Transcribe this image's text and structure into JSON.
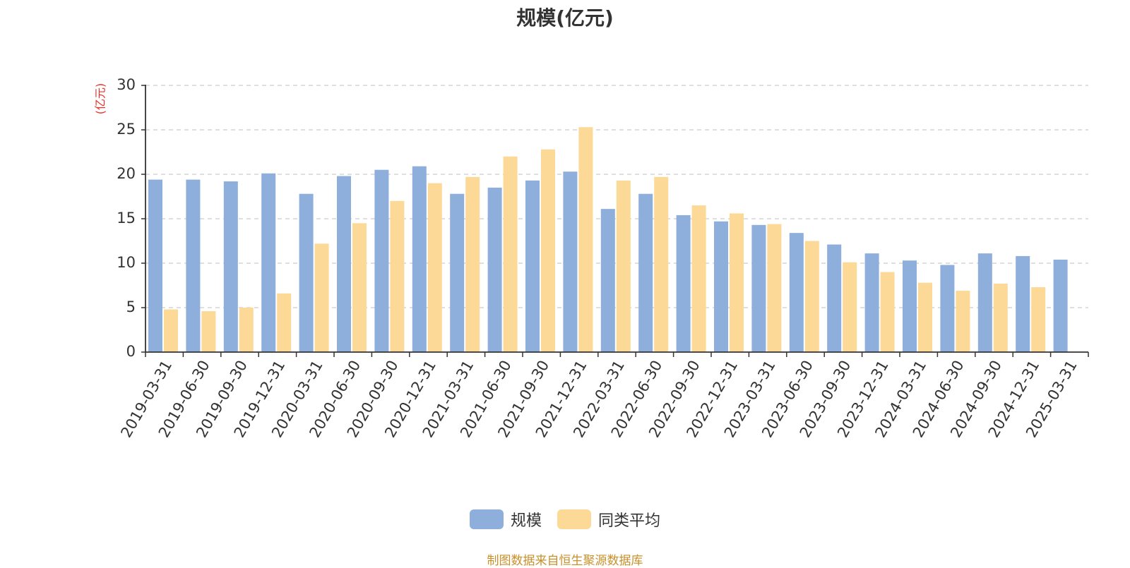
{
  "chart_data": {
    "type": "bar",
    "title": "规模(亿元)",
    "ylabel": "(亿元)",
    "ylim": [
      0,
      30
    ],
    "yticks": [
      0,
      5,
      10,
      15,
      20,
      25,
      30
    ],
    "grid": true,
    "legend_position": "bottom-center",
    "categories": [
      "2019-03-31",
      "2019-06-30",
      "2019-09-30",
      "2019-12-31",
      "2020-03-31",
      "2020-06-30",
      "2020-09-30",
      "2020-12-31",
      "2021-03-31",
      "2021-06-30",
      "2021-09-30",
      "2021-12-31",
      "2022-03-31",
      "2022-06-30",
      "2022-09-30",
      "2022-12-31",
      "2023-03-31",
      "2023-06-30",
      "2023-09-30",
      "2023-12-31",
      "2024-03-31",
      "2024-06-30",
      "2024-09-30",
      "2024-12-31",
      "2025-03-31"
    ],
    "series": [
      {
        "name": "规模",
        "color": "#8eaedc",
        "values": [
          19.4,
          19.4,
          19.2,
          20.1,
          17.8,
          19.8,
          20.5,
          20.9,
          17.8,
          18.5,
          19.3,
          20.3,
          16.1,
          17.8,
          15.4,
          14.7,
          14.3,
          13.4,
          12.1,
          11.1,
          10.3,
          9.8,
          11.1,
          10.8,
          10.4
        ]
      },
      {
        "name": "同类平均",
        "color": "#fdd998",
        "values": [
          4.8,
          4.6,
          5.0,
          6.6,
          12.2,
          14.5,
          17.0,
          19.0,
          19.7,
          22.0,
          22.8,
          25.3,
          19.3,
          19.7,
          16.5,
          15.6,
          14.4,
          12.5,
          10.1,
          9.0,
          7.8,
          6.9,
          7.7,
          7.3,
          null
        ]
      }
    ]
  },
  "footer": {
    "source": "制图数据来自恒生聚源数据库"
  }
}
